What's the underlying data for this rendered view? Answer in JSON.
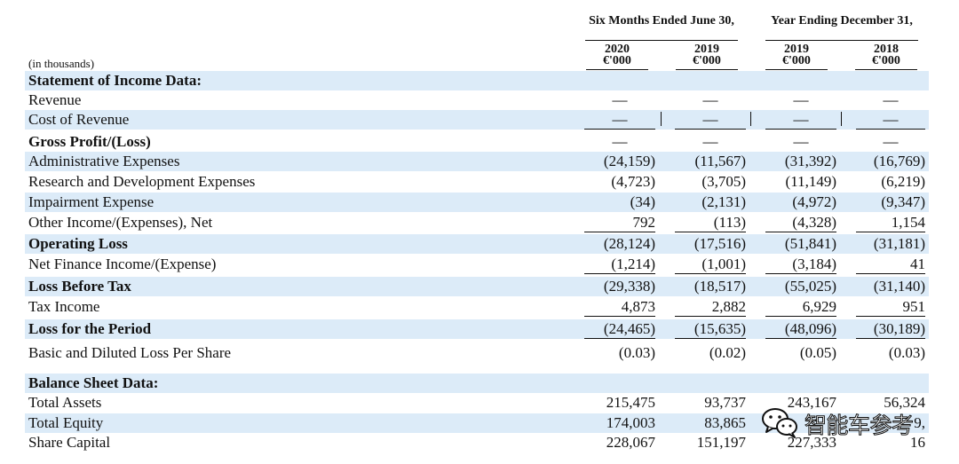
{
  "header": {
    "group1": "Six Months Ended June 30,",
    "group2": "Year Ending December 31,",
    "cols": [
      {
        "year": "2020",
        "unit": "€'000"
      },
      {
        "year": "2019",
        "unit": "€'000"
      },
      {
        "year": "2019",
        "unit": "€'000"
      },
      {
        "year": "2018",
        "unit": "€'000"
      }
    ]
  },
  "units_note": "(in thousands)",
  "sections": {
    "income_title": "Statement of Income Data:",
    "balance_title": "Balance Sheet Data:"
  },
  "income_rows": [
    {
      "label": "Revenue",
      "values": [
        "—",
        "—",
        "—",
        "—"
      ]
    },
    {
      "label": "Cost of Revenue",
      "values": [
        "—",
        "—",
        "—",
        "—"
      ]
    },
    {
      "label": "Gross Profit/(Loss)",
      "values": [
        "—",
        "—",
        "—",
        "—"
      ]
    },
    {
      "label": "Administrative Expenses",
      "values": [
        "(24,159)",
        "(11,567)",
        "(31,392)",
        "(16,769)"
      ]
    },
    {
      "label": "Research and Development Expenses",
      "values": [
        "(4,723)",
        "(3,705)",
        "(11,149)",
        "(6,219)"
      ]
    },
    {
      "label": "Impairment Expense",
      "values": [
        "(34)",
        "(2,131)",
        "(4,972)",
        "(9,347)"
      ]
    },
    {
      "label": "Other Income/(Expenses), Net",
      "values": [
        "792",
        "(113)",
        "(4,328)",
        "1,154"
      ]
    },
    {
      "label": "Operating Loss",
      "values": [
        "(28,124)",
        "(17,516)",
        "(51,841)",
        "(31,181)"
      ]
    },
    {
      "label": "Net Finance Income/(Expense)",
      "values": [
        "(1,214)",
        "(1,001)",
        "(3,184)",
        "41"
      ]
    },
    {
      "label": "Loss Before Tax",
      "values": [
        "(29,338)",
        "(18,517)",
        "(55,025)",
        "(31,140)"
      ]
    },
    {
      "label": "Tax Income",
      "values": [
        "4,873",
        "2,882",
        "6,929",
        "951"
      ]
    },
    {
      "label": "Loss for the Period",
      "values": [
        "(24,465)",
        "(15,635)",
        "(48,096)",
        "(30,189)"
      ]
    },
    {
      "label": "Basic and Diluted Loss Per Share",
      "values": [
        "(0.03)",
        "(0.02)",
        "(0.05)",
        "(0.03)"
      ]
    }
  ],
  "balance_rows": [
    {
      "label": "Total Assets",
      "values": [
        "215,475",
        "93,737",
        "243,167",
        "56,324"
      ]
    },
    {
      "label": "Total Equity",
      "values": [
        "174,003",
        "83,865",
        "",
        "9,"
      ]
    },
    {
      "label": "Share Capital",
      "values": [
        "228,067",
        "151,197",
        "227,333",
        "16"
      ]
    }
  ],
  "watermark": {
    "text": "智能车参考",
    "icon": "wechat-logo-icon"
  }
}
